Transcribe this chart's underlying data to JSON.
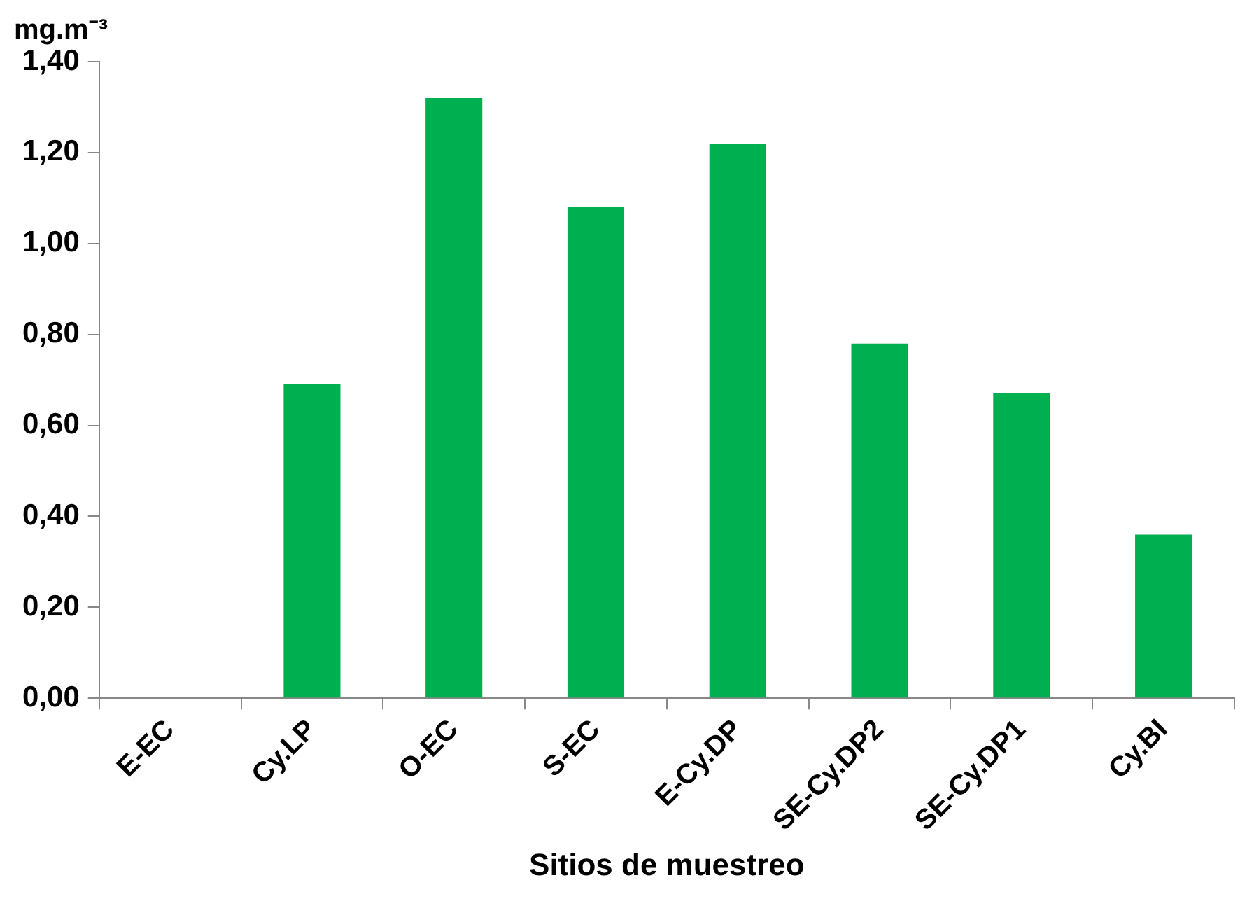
{
  "chart_data": {
    "type": "bar",
    "ylabel": "mg.m⁻³",
    "xlabel": "Sitios de muestreo",
    "categories": [
      "E-EC",
      "Cy.LP",
      "O-EC",
      "S-EC",
      "E-Cy.DP",
      "SE-Cy.DP2",
      "SE-Cy.DP1",
      "Cy.BI"
    ],
    "values": [
      0,
      0.69,
      1.32,
      1.08,
      1.22,
      0.78,
      0.67,
      0.36
    ],
    "color": "#00b050",
    "ylim": [
      0,
      1.4
    ],
    "yticks": [
      {
        "value": 0,
        "label": "0,00"
      },
      {
        "value": 0.2,
        "label": "0,20"
      },
      {
        "value": 0.4,
        "label": "0,40"
      },
      {
        "value": 0.6,
        "label": "0,60"
      },
      {
        "value": 0.8,
        "label": "0,80"
      },
      {
        "value": 1,
        "label": "1,00"
      },
      {
        "value": 1.2,
        "label": "1,20"
      },
      {
        "value": 1.4,
        "label": "1,40"
      }
    ],
    "grid": false,
    "legend": false
  }
}
